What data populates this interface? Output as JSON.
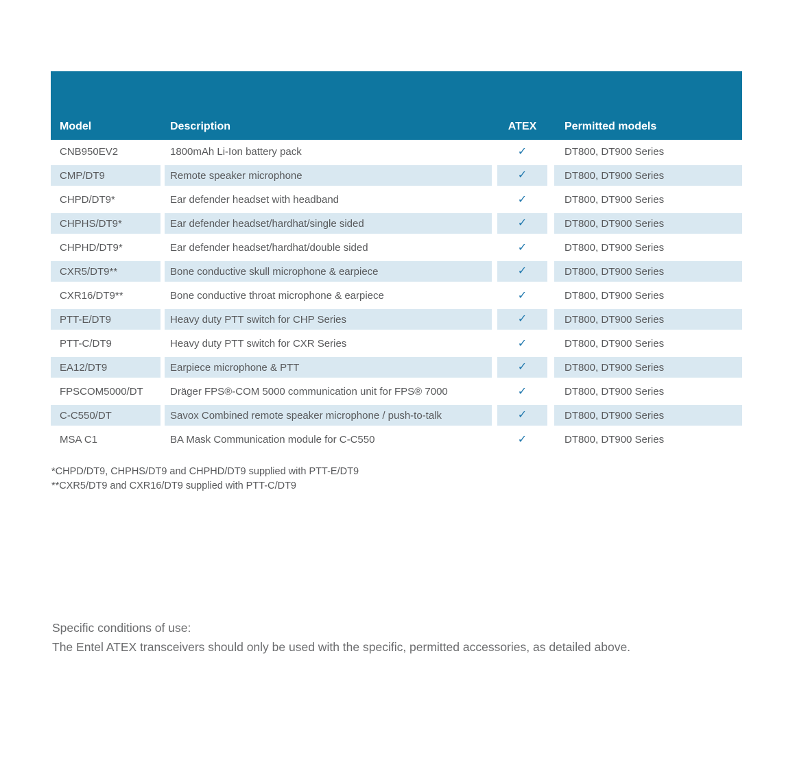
{
  "table": {
    "columns": {
      "model": "Model",
      "description": "Description",
      "atex": "ATEX",
      "permitted": "Permitted models"
    },
    "check_glyph": "✓",
    "rows": [
      {
        "model": "CNB950EV2",
        "description": "1800mAh Li-Ion battery pack",
        "atex": true,
        "permitted": "DT800, DT900 Series"
      },
      {
        "model": "CMP/DT9",
        "description": "Remote speaker microphone",
        "atex": true,
        "permitted": "DT800, DT900 Series"
      },
      {
        "model": "CHPD/DT9*",
        "description": "Ear defender headset with headband",
        "atex": true,
        "permitted": "DT800, DT900 Series"
      },
      {
        "model": "CHPHS/DT9*",
        "description": "Ear defender headset/hardhat/single sided",
        "atex": true,
        "permitted": "DT800, DT900 Series"
      },
      {
        "model": "CHPHD/DT9*",
        "description": "Ear defender headset/hardhat/double sided",
        "atex": true,
        "permitted": "DT800, DT900 Series"
      },
      {
        "model": "CXR5/DT9**",
        "description": "Bone conductive skull microphone & earpiece",
        "atex": true,
        "permitted": "DT800, DT900 Series"
      },
      {
        "model": "CXR16/DT9**",
        "description": "Bone conductive throat microphone & earpiece",
        "atex": true,
        "permitted": "DT800, DT900 Series"
      },
      {
        "model": "PTT-E/DT9",
        "description": "Heavy duty PTT switch for CHP Series",
        "atex": true,
        "permitted": "DT800, DT900 Series"
      },
      {
        "model": "PTT-C/DT9",
        "description": "Heavy duty PTT switch for CXR Series",
        "atex": true,
        "permitted": "DT800, DT900 Series"
      },
      {
        "model": "EA12/DT9",
        "description": "Earpiece microphone & PTT",
        "atex": true,
        "permitted": "DT800, DT900 Series"
      },
      {
        "model": "FPSCOM5000/DT",
        "description": "Dräger FPS®-COM 5000 communication unit for FPS® 7000",
        "atex": true,
        "permitted": "DT800, DT900 Series"
      },
      {
        "model": "C-C550/DT",
        "description": "Savox Combined remote speaker microphone / push-to-talk",
        "atex": true,
        "permitted": "DT800, DT900 Series"
      },
      {
        "model": "MSA C1",
        "description": "BA Mask Communication module for C-C550",
        "atex": true,
        "permitted": "DT800, DT900 Series"
      }
    ]
  },
  "footnotes": {
    "line1": "*CHPD/DT9, CHPHS/DT9 and CHPHD/DT9 supplied with PTT-E/DT9",
    "line2": "**CXR5/DT9 and CXR16/DT9 supplied with PTT-C/DT9"
  },
  "conditions": {
    "title": "Specific conditions of use:",
    "body": "The Entel ATEX transceivers should only be used with the specific, permitted accessories, as detailed above."
  },
  "colors": {
    "header_bg": "#0e76a0",
    "stripe_bg": "#d9e8f1",
    "check": "#2279ae",
    "body_text": "#58595b",
    "conditions_text": "#6b6c6e"
  }
}
